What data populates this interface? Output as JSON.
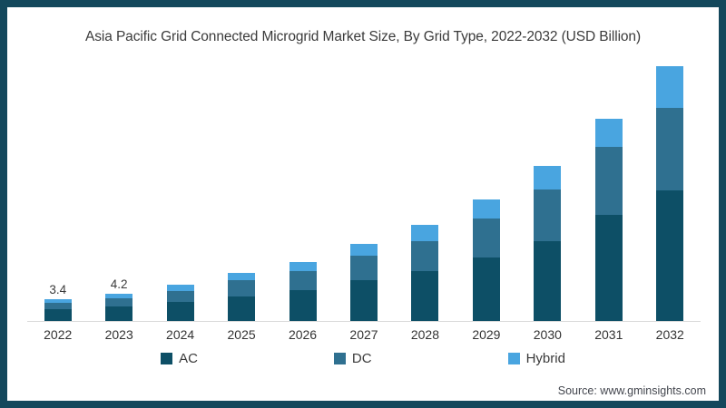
{
  "frame": {
    "border_color": "#14485c",
    "background_color": "#ffffff",
    "axis_line_color": "#d9d9d9"
  },
  "title": "Asia Pacific Grid Connected Microgrid Market Size, By Grid Type, 2022-2032 (USD Billion)",
  "source": "Source: www.gminsights.com",
  "legend": {
    "items": [
      {
        "label": "AC",
        "color": "#0d4f66"
      },
      {
        "label": "DC",
        "color": "#2f7090"
      },
      {
        "label": "Hybrid",
        "color": "#49a5e0"
      }
    ]
  },
  "chart_data": {
    "type": "bar",
    "stacked": true,
    "title": "Asia Pacific Grid Connected Microgrid Market Size, By Grid Type, 2022-2032 (USD Billion)",
    "xlabel": "",
    "ylabel": "USD Billion",
    "ylim": [
      0,
      40
    ],
    "grid": false,
    "legend_position": "bottom",
    "categories": [
      "2022",
      "2023",
      "2024",
      "2025",
      "2026",
      "2027",
      "2028",
      "2029",
      "2030",
      "2031",
      "2032"
    ],
    "series": [
      {
        "name": "AC",
        "color": "#0d4f66",
        "values": [
          1.8,
          2.2,
          2.9,
          3.8,
          4.7,
          6.2,
          7.6,
          9.7,
          12.2,
          16.3,
          20.0
        ]
      },
      {
        "name": "DC",
        "color": "#2f7090",
        "values": [
          1.0,
          1.3,
          1.7,
          2.4,
          2.9,
          3.8,
          4.7,
          6.0,
          7.9,
          10.4,
          12.7
        ]
      },
      {
        "name": "Hybrid",
        "color": "#49a5e0",
        "values": [
          0.6,
          0.7,
          0.9,
          1.1,
          1.4,
          1.8,
          2.4,
          2.9,
          3.6,
          4.3,
          6.3
        ]
      }
    ],
    "totals": [
      3.4,
      4.2,
      5.5,
      7.3,
      9.0,
      11.8,
      14.7,
      18.6,
      23.7,
      31.0,
      39.0
    ],
    "bar_labels": {
      "2022": "3.4",
      "2023": "4.2"
    }
  }
}
